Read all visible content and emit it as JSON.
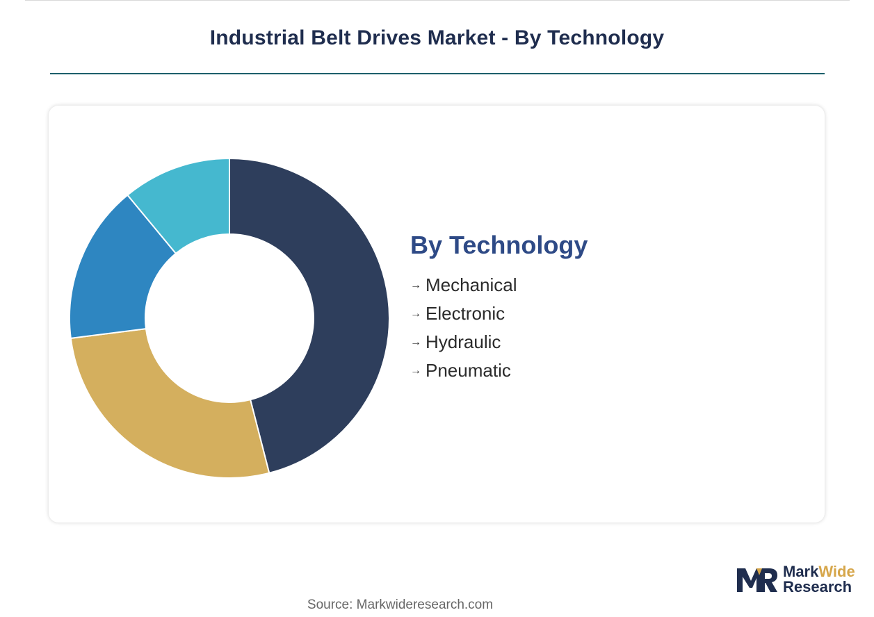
{
  "header": {
    "title": "Industrial Belt Drives Market - By Technology"
  },
  "chart_data": {
    "type": "pie",
    "variant": "donut",
    "title": "By Technology",
    "categories": [
      "Mechanical",
      "Electronic",
      "Hydraulic",
      "Pneumatic"
    ],
    "slices": [
      {
        "label": "Mechanical",
        "value": 46,
        "color": "#2e3e5c"
      },
      {
        "label": "Electronic",
        "value": 27,
        "color": "#d4af5e"
      },
      {
        "label": "Hydraulic",
        "value": 16,
        "color": "#2e86c1"
      },
      {
        "label": "Pneumatic",
        "value": 11,
        "color": "#45b8cf"
      }
    ],
    "legend_position": "right",
    "legend_marker": "→"
  },
  "footer": {
    "source": "Source: Markwideresearch.com"
  },
  "logo": {
    "word1": "Mark",
    "word2": "Wide",
    "word3": "Research"
  },
  "colors": {
    "title": "#1f2d4e",
    "rule": "#1d5f6b",
    "legend_title": "#2e4a86",
    "logo_accent": "#d6a64a"
  }
}
